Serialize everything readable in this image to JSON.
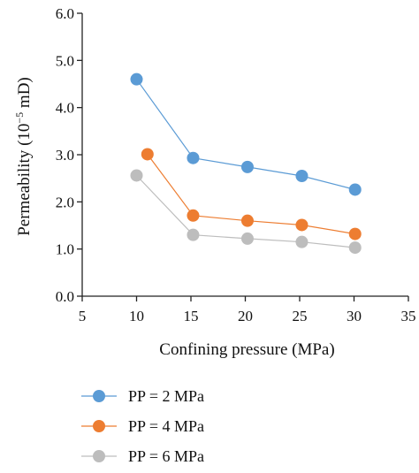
{
  "chart_data": {
    "type": "line",
    "title": "",
    "xlabel": "Confining pressure (MPa)",
    "ylabel_parts": {
      "before": "Permeability (10",
      "sup": "−5",
      "after": " mD)"
    },
    "xlim": [
      5,
      35
    ],
    "ylim": [
      0.0,
      6.0
    ],
    "x_ticks": [
      {
        "value": 5,
        "label": "5"
      },
      {
        "value": 10,
        "label": "10"
      },
      {
        "value": 15,
        "label": "15"
      },
      {
        "value": 20,
        "label": "20"
      },
      {
        "value": 25,
        "label": "25"
      },
      {
        "value": 30,
        "label": "30"
      },
      {
        "value": 35,
        "label": "35"
      }
    ],
    "y_ticks": [
      {
        "value": 0,
        "label": "0.0"
      },
      {
        "value": 1,
        "label": "1.0"
      },
      {
        "value": 2,
        "label": "2.0"
      },
      {
        "value": 3,
        "label": "3.0"
      },
      {
        "value": 4,
        "label": "4.0"
      },
      {
        "value": 5,
        "label": "5.0"
      },
      {
        "value": 6,
        "label": "6.0"
      }
    ],
    "grid": false,
    "legend_position": "bottom-left",
    "series": [
      {
        "name": "PP = 2 MPa",
        "color": "#5b9bd5",
        "points": [
          {
            "x": 10,
            "y": 4.6
          },
          {
            "x": 15.2,
            "y": 2.93
          },
          {
            "x": 20.2,
            "y": 2.74
          },
          {
            "x": 25.2,
            "y": 2.55
          },
          {
            "x": 30.1,
            "y": 2.26
          }
        ]
      },
      {
        "name": "PP = 4 MPa",
        "color": "#ed7d31",
        "points": [
          {
            "x": 11,
            "y": 3.01
          },
          {
            "x": 15.2,
            "y": 1.71
          },
          {
            "x": 20.2,
            "y": 1.6
          },
          {
            "x": 25.2,
            "y": 1.51
          },
          {
            "x": 30.1,
            "y": 1.32
          }
        ]
      },
      {
        "name": "PP = 6 MPa",
        "color": "#bdbdbd",
        "points": [
          {
            "x": 10,
            "y": 2.56
          },
          {
            "x": 15.2,
            "y": 1.3
          },
          {
            "x": 20.2,
            "y": 1.22
          },
          {
            "x": 25.2,
            "y": 1.15
          },
          {
            "x": 30.1,
            "y": 1.03
          }
        ]
      }
    ]
  }
}
